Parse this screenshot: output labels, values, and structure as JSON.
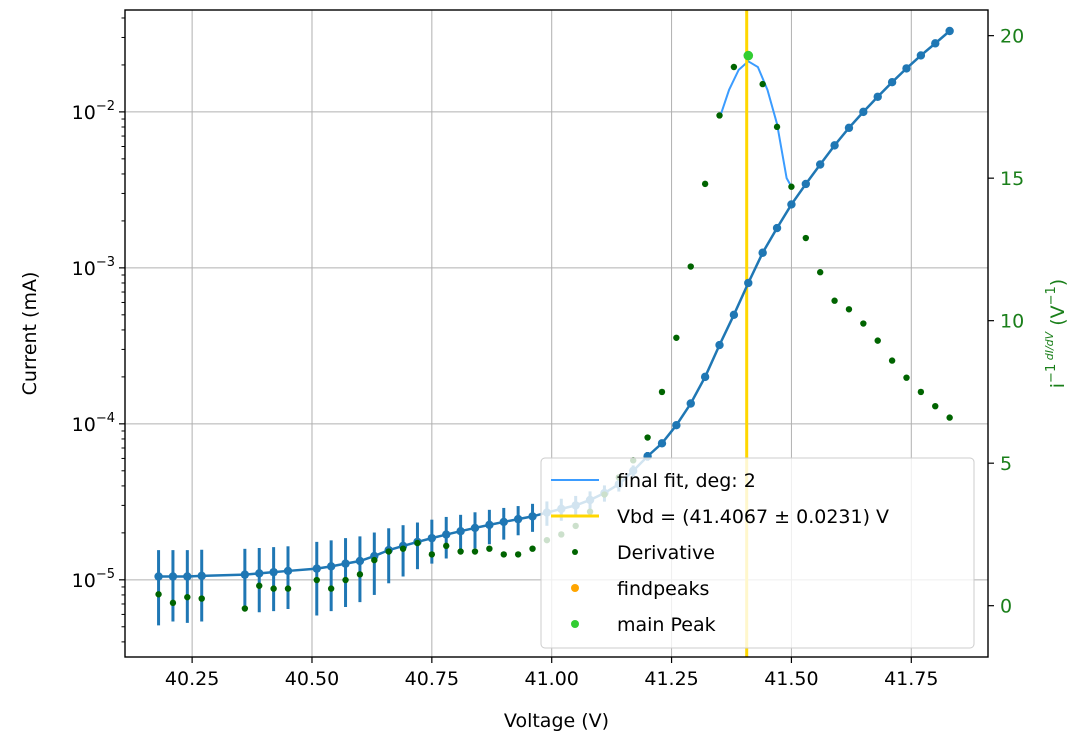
{
  "chart_data": {
    "type": "scatter",
    "title": "",
    "xlabel": "Voltage (V)",
    "ylabel": "Current (mA)",
    "y2label": "i⁻¹ dI/dV (V⁻¹)",
    "y2label_parts": {
      "base": "i",
      "sup": "−1",
      "num": "dI",
      "den": "dV",
      "unit": "(V",
      "unit_sup": "−1",
      "unit_close": ")"
    },
    "xlim": [
      40.11,
      41.91
    ],
    "ylim_log": [
      3.2e-06,
      0.045
    ],
    "y2lim": [
      -1.8,
      20.9
    ],
    "yscale": "log",
    "grid": true,
    "xticks": [
      40.25,
      40.5,
      40.75,
      41.0,
      41.25,
      41.5,
      41.75
    ],
    "xtick_labels": [
      "40.25",
      "40.50",
      "40.75",
      "41.00",
      "41.25",
      "41.50",
      "41.75"
    ],
    "yticks": [
      {
        "value": 1e-05,
        "base": "10",
        "exp": "−5"
      },
      {
        "value": 0.0001,
        "base": "10",
        "exp": "−4"
      },
      {
        "value": 0.001,
        "base": "10",
        "exp": "−3"
      },
      {
        "value": 0.01,
        "base": "10",
        "exp": "−2"
      }
    ],
    "y2ticks": [
      0,
      5,
      10,
      15,
      20
    ],
    "y2tick_labels": [
      "0",
      "5",
      "10",
      "15",
      "20"
    ],
    "colors": {
      "current": "#1f77b4",
      "fit": "#3b9cff",
      "vbd": "#ffd700",
      "derivative": "#006400",
      "findpeaks": "#ffa500",
      "main_peak": "#32cd32",
      "right_axis": "#1a7f1a",
      "grid": "#b0b0b0"
    },
    "series": [
      {
        "name": "",
        "kind": "current-errorbar",
        "axis": "left",
        "x": [
          40.18,
          40.21,
          40.24,
          40.27,
          40.36,
          40.39,
          40.42,
          40.45,
          40.51,
          40.54,
          40.57,
          40.6,
          40.63,
          40.66,
          40.69,
          40.72,
          40.75,
          40.78,
          40.81,
          40.84,
          40.87,
          40.9,
          40.93,
          40.96,
          40.99,
          41.02,
          41.05,
          41.08,
          41.11,
          41.14,
          41.17,
          41.2,
          41.23,
          41.26,
          41.29,
          41.32,
          41.35,
          41.38,
          41.41,
          41.44,
          41.47,
          41.5,
          41.53,
          41.56,
          41.59,
          41.62,
          41.65,
          41.68,
          41.71,
          41.74,
          41.77,
          41.8,
          41.83
        ],
        "y": [
          1.05e-05,
          1.05e-05,
          1.05e-05,
          1.06e-05,
          1.08e-05,
          1.1e-05,
          1.12e-05,
          1.14e-05,
          1.18e-05,
          1.22e-05,
          1.27e-05,
          1.32e-05,
          1.42e-05,
          1.55e-05,
          1.65e-05,
          1.75e-05,
          1.85e-05,
          1.95e-05,
          2.05e-05,
          2.15e-05,
          2.25e-05,
          2.35e-05,
          2.45e-05,
          2.55e-05,
          2.7e-05,
          2.85e-05,
          3e-05,
          3.25e-05,
          3.6e-05,
          4.1e-05,
          5e-05,
          6.2e-05,
          7.5e-05,
          9.8e-05,
          0.000135,
          0.0002,
          0.00032,
          0.0005,
          0.0008,
          0.00125,
          0.0018,
          0.00255,
          0.00345,
          0.0046,
          0.0061,
          0.0079,
          0.01,
          0.0125,
          0.0155,
          0.019,
          0.023,
          0.0275,
          0.033
        ],
        "err_lo": [
          5.4e-06,
          5.1e-06,
          5.2e-06,
          5.2e-06,
          4.2e-06,
          4.8e-06,
          4.9e-06,
          4.9e-06,
          5.9e-06,
          5.9e-06,
          6e-06,
          6e-06,
          6.2e-06,
          6e-06,
          6e-06,
          5.8e-06,
          5.8e-06,
          5.8e-06,
          5.6e-06,
          5.6e-06,
          5.6e-06,
          5.4e-06,
          5.2e-06,
          5.2e-06,
          4.8e-06,
          4.6e-06,
          4.5e-06,
          4.4e-06,
          4.3e-06,
          4.2e-06,
          4.1e-06,
          4e-06,
          3.5e-06,
          3e-06,
          0,
          0,
          0,
          0,
          0,
          0,
          0,
          0,
          0,
          0,
          0,
          0,
          0,
          0,
          0,
          0,
          0,
          0,
          0
        ],
        "err_hi": [
          5e-06,
          5e-06,
          5e-06,
          5e-06,
          5e-06,
          5e-06,
          5e-06,
          5e-06,
          5.7e-06,
          5.7e-06,
          5.8e-06,
          5.8e-06,
          5.9e-06,
          5.9e-06,
          5.9e-06,
          5.8e-06,
          5.8e-06,
          5.8e-06,
          5.6e-06,
          5.6e-06,
          5.6e-06,
          5.4e-06,
          5.2e-06,
          5.2e-06,
          4.8e-06,
          4.6e-06,
          4.5e-06,
          4.4e-06,
          4.3e-06,
          4.2e-06,
          4.1e-06,
          4e-06,
          3.5e-06,
          3e-06,
          0,
          0,
          0,
          0,
          0,
          0,
          0,
          0,
          0,
          0,
          0,
          0,
          0,
          0,
          0,
          0,
          0,
          0,
          0
        ]
      },
      {
        "name": "Derivative",
        "kind": "scatter",
        "axis": "right",
        "x": [
          40.18,
          40.21,
          40.24,
          40.27,
          40.36,
          40.39,
          40.42,
          40.45,
          40.51,
          40.54,
          40.57,
          40.6,
          40.63,
          40.66,
          40.69,
          40.72,
          40.75,
          40.78,
          40.81,
          40.84,
          40.87,
          40.9,
          40.93,
          40.96,
          40.99,
          41.02,
          41.05,
          41.08,
          41.11,
          41.14,
          41.17,
          41.2,
          41.23,
          41.26,
          41.29,
          41.32,
          41.35,
          41.38,
          41.41,
          41.44,
          41.47,
          41.5,
          41.53,
          41.56,
          41.59,
          41.62,
          41.65,
          41.68,
          41.71,
          41.74,
          41.77,
          41.8,
          41.83
        ],
        "y": [
          0.4,
          0.1,
          0.3,
          0.25,
          -0.1,
          0.7,
          0.6,
          0.6,
          0.9,
          0.6,
          0.9,
          1.1,
          1.6,
          1.9,
          2.0,
          2.2,
          1.8,
          2.1,
          1.9,
          1.9,
          2.0,
          1.8,
          1.8,
          2.0,
          2.3,
          2.5,
          2.8,
          3.3,
          3.9,
          4.5,
          5.1,
          5.9,
          7.5,
          9.4,
          11.9,
          14.8,
          17.2,
          18.9,
          19.3,
          18.3,
          16.8,
          14.7,
          12.9,
          11.7,
          10.7,
          10.4,
          9.9,
          9.3,
          8.6,
          8.0,
          7.5,
          7.0,
          6.6
        ]
      },
      {
        "name": "final fit, deg: 2",
        "kind": "line",
        "axis": "right",
        "x": [
          41.35,
          41.37,
          41.39,
          41.41,
          41.43,
          41.45,
          41.47,
          41.49,
          41.5
        ],
        "y": [
          17.1,
          18.1,
          18.8,
          19.1,
          18.9,
          18.1,
          16.9,
          15.0,
          14.7
        ]
      },
      {
        "name": "main Peak",
        "kind": "scatter",
        "axis": "right",
        "x": [
          41.41
        ],
        "y": [
          19.3
        ]
      },
      {
        "name": "Vbd = (41.4067 ± 0.0231) V",
        "kind": "vline",
        "x": [
          41.4067
        ]
      }
    ],
    "legend": {
      "location": "lower-right",
      "entries": [
        {
          "label": "final fit, deg: 2",
          "marker": "line",
          "color": "#3b9cff"
        },
        {
          "label": "Vbd = (41.4067 ± 0.0231) V",
          "marker": "line",
          "color": "#ffd700"
        },
        {
          "label": "Derivative",
          "marker": "dot-small",
          "color": "#006400"
        },
        {
          "label": "findpeaks",
          "marker": "dot",
          "color": "#ffa500"
        },
        {
          "label": "main Peak",
          "marker": "dot",
          "color": "#32cd32"
        }
      ]
    }
  }
}
